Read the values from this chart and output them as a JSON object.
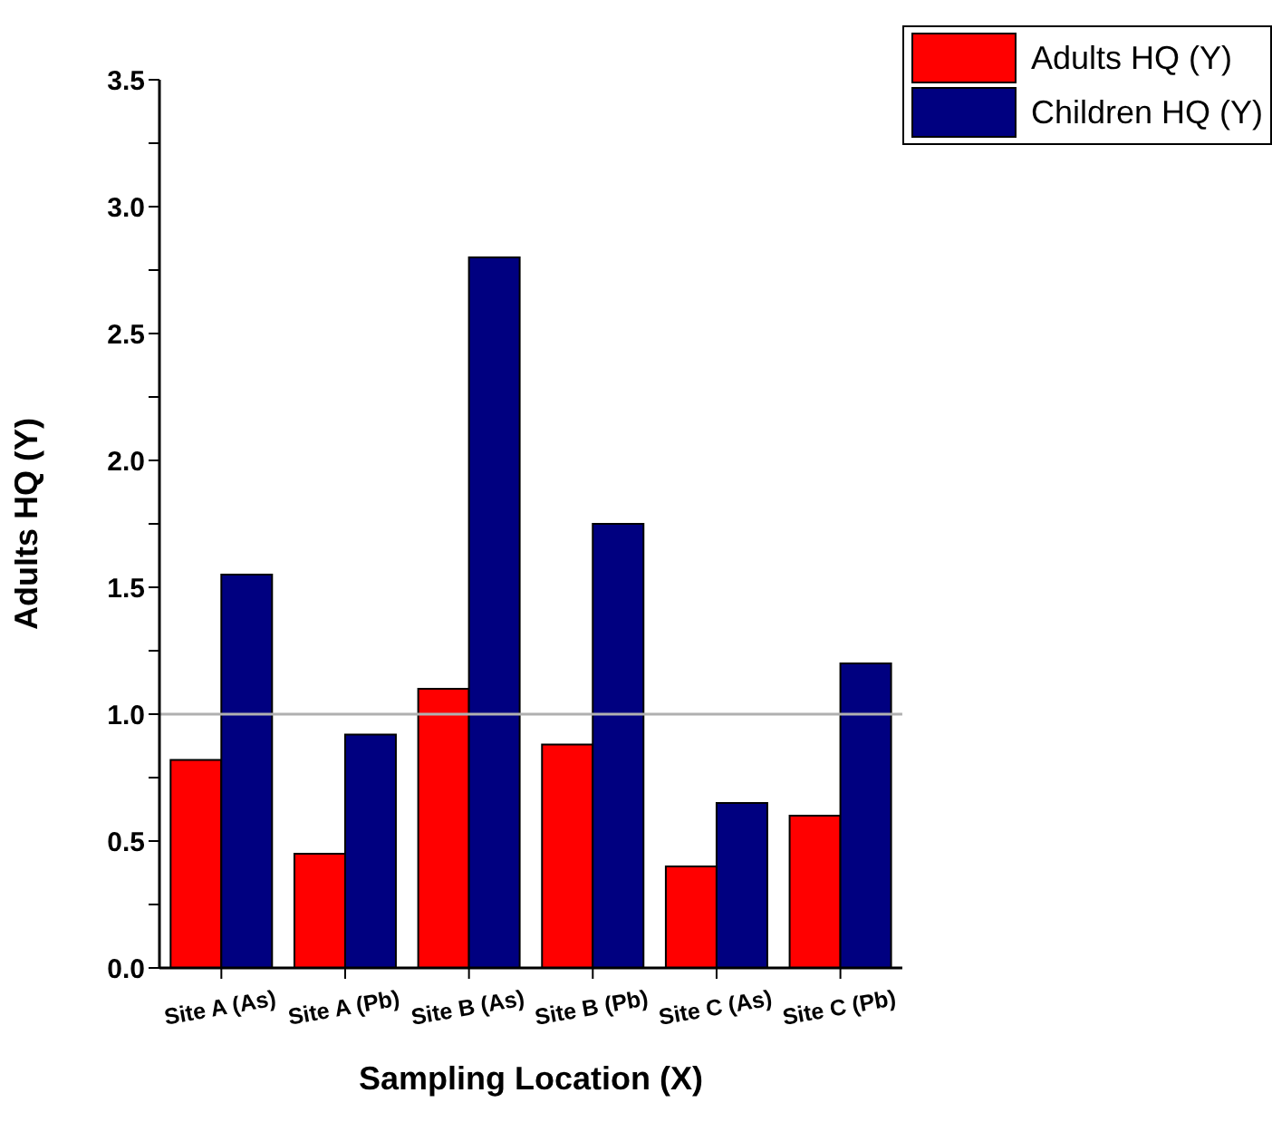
{
  "chart_data": {
    "type": "bar",
    "xlabel": "Sampling Location (X)",
    "ylabel": "Adults HQ (Y)",
    "categories": [
      "Site A (As)",
      "Site A (Pb)",
      "Site B (As)",
      "Site B (Pb)",
      "Site C (As)",
      "Site C (Pb)"
    ],
    "series": [
      {
        "name": "Adults HQ (Y)",
        "color": "#ff0000",
        "values": [
          0.82,
          0.45,
          1.1,
          0.88,
          0.4,
          0.6
        ]
      },
      {
        "name": "Children HQ (Y)",
        "color": "#000080",
        "values": [
          1.55,
          0.92,
          2.8,
          1.75,
          0.65,
          1.2
        ]
      }
    ],
    "ylim": [
      0,
      3.5
    ],
    "yticks": [
      {
        "value": 0,
        "label": "0.0"
      },
      {
        "value": 0.25,
        "label": null
      },
      0.5,
      {
        "value": 0.75,
        "label": null
      },
      {
        "value": 1,
        "label": "1.0"
      },
      {
        "value": 1.25,
        "label": null
      },
      1.5,
      {
        "value": 1.75,
        "label": null
      },
      {
        "value": 2,
        "label": "2.0"
      },
      {
        "value": 2.25,
        "label": null
      },
      2.5,
      {
        "value": 2.75,
        "label": null
      },
      {
        "value": 3,
        "label": "3.0"
      },
      {
        "value": 3.25,
        "label": null
      },
      3.5
    ],
    "ref_lines": [
      {
        "axis": "y",
        "value": 1.0,
        "color": "#b0b0b0"
      }
    ],
    "legend": "top right",
    "grid": false
  }
}
